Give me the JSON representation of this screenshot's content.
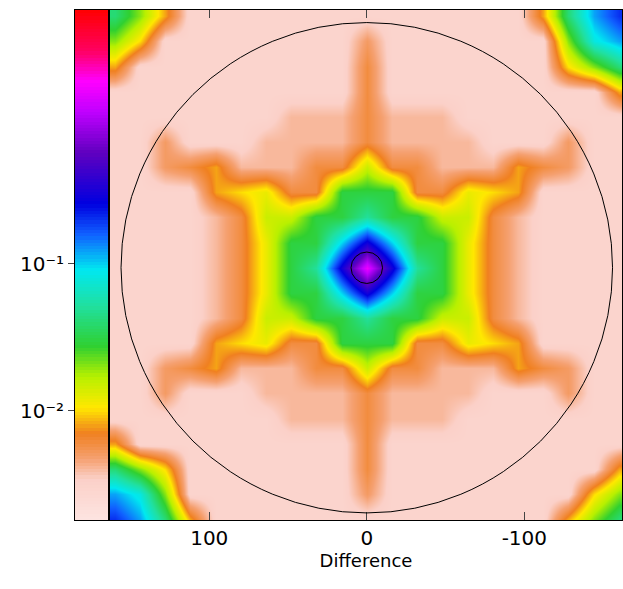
{
  "chart_data": {
    "type": "heatmap",
    "xlabel": "Difference",
    "xlim": [
      163,
      -162
    ],
    "ylim": [
      -160.5,
      164
    ],
    "xticks": [
      100,
      0,
      -100
    ],
    "tick_labels": "x",
    "circle_radii": [
      156,
      10
    ],
    "colorbar_range": [
      0.0018,
      5.3
    ],
    "colorbar_ticks": [
      {
        "value": 0.1,
        "label": "10⁻¹"
      },
      {
        "value": 0.01,
        "label": "10⁻²"
      }
    ],
    "x": [
      -160,
      -144,
      -128,
      -112,
      -96,
      -80,
      -64,
      -48,
      -32,
      -16,
      0,
      16,
      32,
      48,
      64,
      80,
      96,
      112,
      128,
      144,
      160
    ],
    "y": [
      -160,
      -144,
      -128,
      -112,
      -96,
      -80,
      -64,
      -48,
      -32,
      -16,
      0,
      16,
      32,
      48,
      64,
      80,
      96,
      112,
      128,
      144,
      160
    ],
    "z": [
      [
        0.04,
        0.02,
        0.008,
        0.003,
        0.003,
        0.003,
        0.003,
        0.003,
        0.003,
        0.003,
        0.003,
        0.003,
        0.003,
        0.003,
        0.003,
        0.003,
        0.003,
        0.008,
        0.04,
        0.12,
        0.2
      ],
      [
        0.02,
        0.01,
        0.003,
        0.003,
        0.003,
        0.003,
        0.003,
        0.003,
        0.003,
        0.003,
        0.005,
        0.003,
        0.003,
        0.003,
        0.003,
        0.003,
        0.003,
        0.003,
        0.02,
        0.08,
        0.12
      ],
      [
        0.008,
        0.003,
        0.003,
        0.003,
        0.003,
        0.003,
        0.003,
        0.003,
        0.003,
        0.003,
        0.006,
        0.003,
        0.003,
        0.003,
        0.003,
        0.003,
        0.003,
        0.003,
        0.01,
        0.02,
        0.04
      ],
      [
        0.003,
        0.003,
        0.003,
        0.003,
        0.003,
        0.003,
        0.003,
        0.003,
        0.003,
        0.003,
        0.006,
        0.003,
        0.003,
        0.003,
        0.003,
        0.003,
        0.003,
        0.003,
        0.003,
        0.003,
        0.008
      ],
      [
        0.003,
        0.003,
        0.003,
        0.003,
        0.003,
        0.003,
        0.003,
        0.004,
        0.004,
        0.004,
        0.006,
        0.004,
        0.004,
        0.004,
        0.003,
        0.003,
        0.003,
        0.003,
        0.003,
        0.003,
        0.003
      ],
      [
        0.003,
        0.003,
        0.005,
        0.003,
        0.003,
        0.003,
        0.004,
        0.004,
        0.004,
        0.004,
        0.006,
        0.004,
        0.004,
        0.004,
        0.004,
        0.003,
        0.003,
        0.003,
        0.005,
        0.003,
        0.003
      ],
      [
        0.003,
        0.003,
        0.005,
        0.006,
        0.008,
        0.004,
        0.004,
        0.004,
        0.006,
        0.006,
        0.015,
        0.006,
        0.006,
        0.004,
        0.004,
        0.004,
        0.008,
        0.006,
        0.005,
        0.003,
        0.003
      ],
      [
        0.003,
        0.003,
        0.003,
        0.003,
        0.008,
        0.01,
        0.012,
        0.006,
        0.006,
        0.03,
        0.03,
        0.03,
        0.006,
        0.006,
        0.012,
        0.01,
        0.008,
        0.003,
        0.003,
        0.003,
        0.003
      ],
      [
        0.003,
        0.003,
        0.003,
        0.003,
        0.004,
        0.006,
        0.015,
        0.015,
        0.03,
        0.03,
        0.05,
        0.03,
        0.03,
        0.015,
        0.015,
        0.006,
        0.004,
        0.003,
        0.003,
        0.003,
        0.003
      ],
      [
        0.003,
        0.003,
        0.003,
        0.003,
        0.004,
        0.006,
        0.012,
        0.03,
        0.03,
        0.1,
        0.3,
        0.1,
        0.03,
        0.03,
        0.012,
        0.006,
        0.004,
        0.003,
        0.003,
        0.003,
        0.003
      ],
      [
        0.003,
        0.003,
        0.003,
        0.003,
        0.004,
        0.006,
        0.012,
        0.03,
        0.05,
        0.3,
        1.5,
        0.3,
        0.05,
        0.03,
        0.012,
        0.006,
        0.004,
        0.003,
        0.003,
        0.003,
        0.003
      ],
      [
        0.003,
        0.003,
        0.003,
        0.003,
        0.004,
        0.006,
        0.012,
        0.03,
        0.03,
        0.1,
        0.3,
        0.1,
        0.03,
        0.03,
        0.012,
        0.006,
        0.004,
        0.003,
        0.003,
        0.003,
        0.003
      ],
      [
        0.003,
        0.003,
        0.003,
        0.003,
        0.004,
        0.006,
        0.015,
        0.015,
        0.03,
        0.03,
        0.05,
        0.03,
        0.03,
        0.015,
        0.015,
        0.006,
        0.004,
        0.003,
        0.003,
        0.003,
        0.003
      ],
      [
        0.003,
        0.003,
        0.003,
        0.003,
        0.008,
        0.01,
        0.012,
        0.006,
        0.006,
        0.03,
        0.03,
        0.03,
        0.006,
        0.006,
        0.012,
        0.01,
        0.008,
        0.003,
        0.003,
        0.003,
        0.003
      ],
      [
        0.003,
        0.003,
        0.005,
        0.006,
        0.008,
        0.004,
        0.004,
        0.004,
        0.006,
        0.006,
        0.015,
        0.006,
        0.006,
        0.004,
        0.004,
        0.004,
        0.008,
        0.006,
        0.005,
        0.003,
        0.003
      ],
      [
        0.003,
        0.003,
        0.005,
        0.003,
        0.003,
        0.003,
        0.004,
        0.004,
        0.004,
        0.004,
        0.006,
        0.004,
        0.004,
        0.004,
        0.004,
        0.003,
        0.003,
        0.003,
        0.005,
        0.003,
        0.003
      ],
      [
        0.003,
        0.003,
        0.003,
        0.003,
        0.003,
        0.003,
        0.003,
        0.004,
        0.004,
        0.004,
        0.006,
        0.004,
        0.004,
        0.004,
        0.003,
        0.003,
        0.003,
        0.003,
        0.003,
        0.003,
        0.003
      ],
      [
        0.008,
        0.003,
        0.003,
        0.003,
        0.003,
        0.003,
        0.003,
        0.003,
        0.003,
        0.003,
        0.006,
        0.003,
        0.003,
        0.003,
        0.003,
        0.003,
        0.003,
        0.003,
        0.003,
        0.003,
        0.003
      ],
      [
        0.04,
        0.02,
        0.01,
        0.003,
        0.003,
        0.003,
        0.003,
        0.003,
        0.003,
        0.003,
        0.006,
        0.003,
        0.003,
        0.003,
        0.003,
        0.003,
        0.003,
        0.003,
        0.003,
        0.003,
        0.008
      ],
      [
        0.12,
        0.08,
        0.02,
        0.003,
        0.003,
        0.003,
        0.003,
        0.003,
        0.003,
        0.003,
        0.005,
        0.003,
        0.003,
        0.003,
        0.003,
        0.003,
        0.003,
        0.003,
        0.003,
        0.01,
        0.02
      ],
      [
        0.2,
        0.12,
        0.04,
        0.008,
        0.003,
        0.003,
        0.003,
        0.003,
        0.003,
        0.003,
        0.003,
        0.003,
        0.003,
        0.003,
        0.003,
        0.003,
        0.003,
        0.003,
        0.008,
        0.02,
        0.04
      ]
    ]
  }
}
